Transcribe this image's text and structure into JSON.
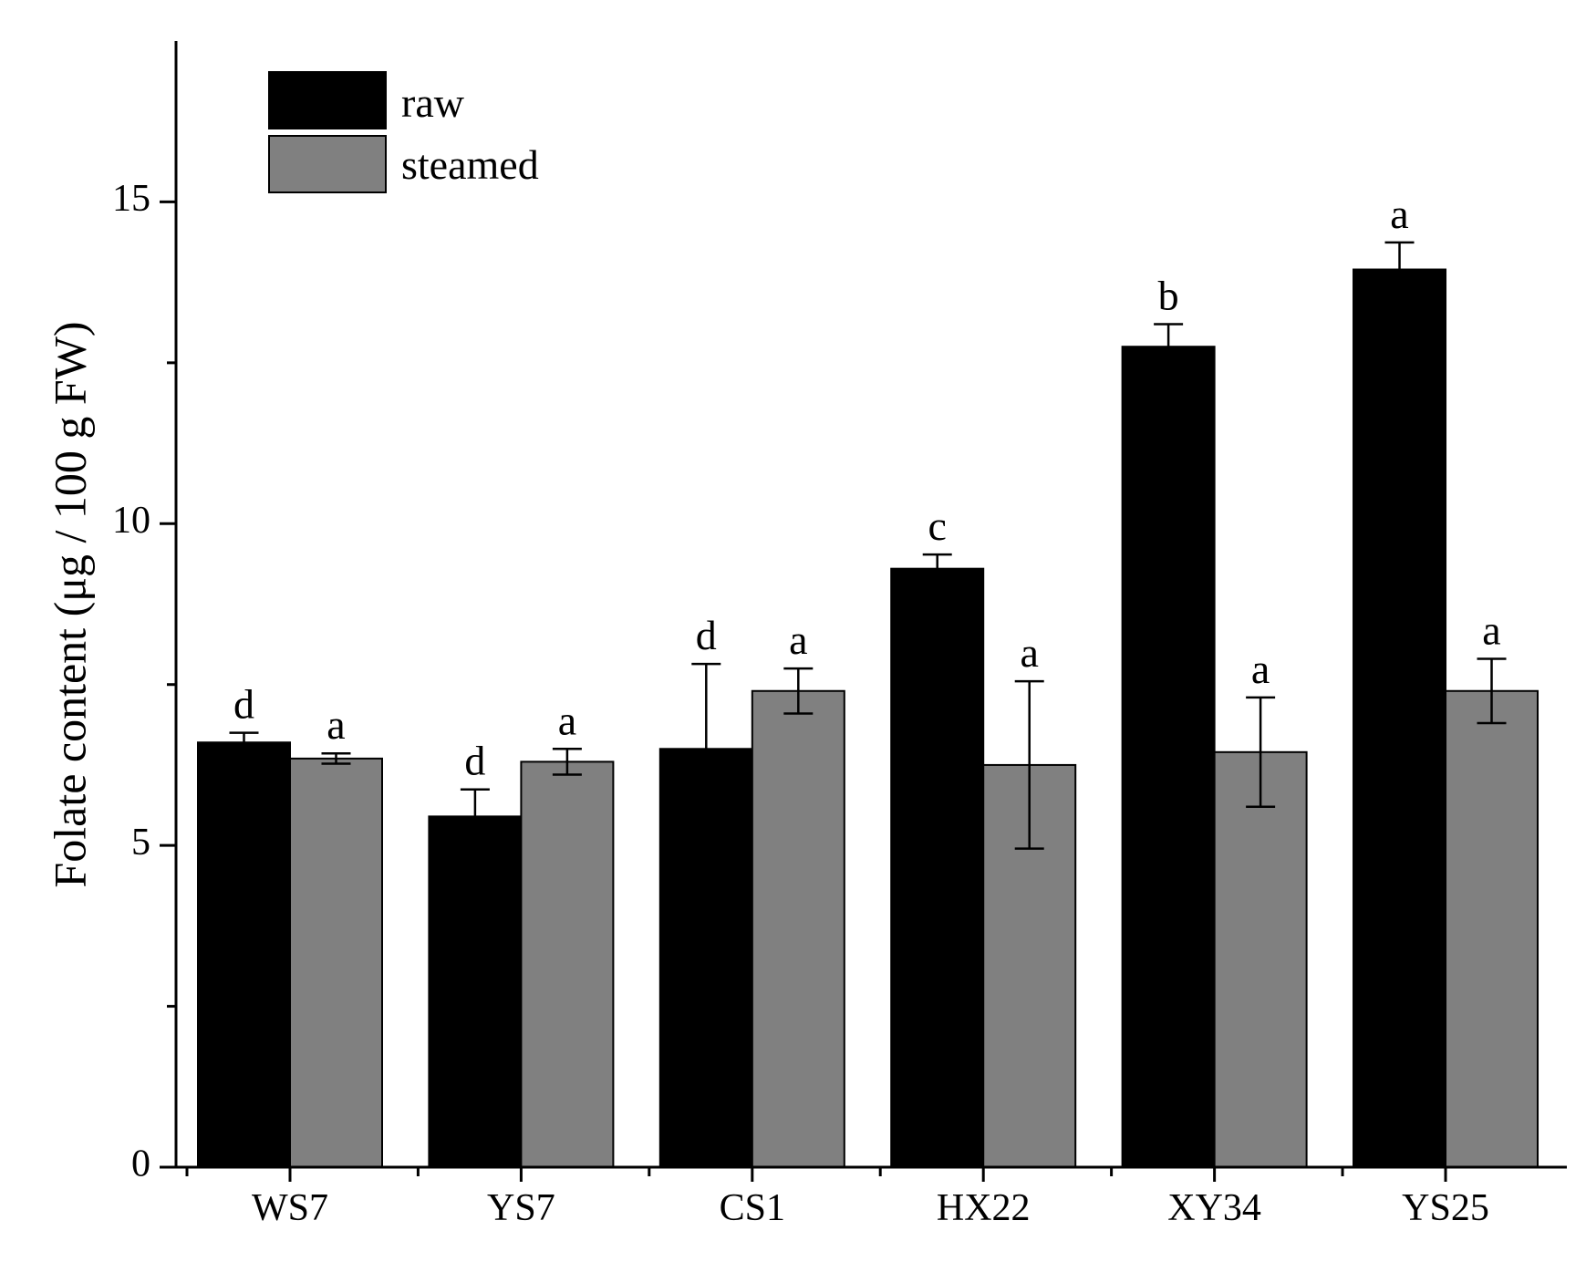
{
  "chart_data": {
    "type": "bar",
    "ylabel": "Folate content (μg / 100 g FW)",
    "xlabel": "",
    "ylim": [
      0,
      17.5
    ],
    "y_ticks": [
      0,
      5,
      10,
      15
    ],
    "categories": [
      "WS7",
      "YS7",
      "CS1",
      "HX22",
      "XY34",
      "YS25"
    ],
    "series": [
      {
        "name": "raw",
        "color": "#000000",
        "values": [
          6.6,
          5.45,
          6.5,
          9.3,
          12.75,
          13.95
        ],
        "errors": [
          0.15,
          0.42,
          1.32,
          0.22,
          0.35,
          0.42
        ],
        "letters": [
          "d",
          "d",
          "d",
          "c",
          "b",
          "a"
        ]
      },
      {
        "name": "steamed",
        "color": "#808080",
        "values": [
          6.35,
          6.3,
          7.4,
          6.25,
          6.45,
          7.4
        ],
        "errors": [
          0.08,
          0.2,
          0.35,
          1.3,
          0.85,
          0.5
        ],
        "letters": [
          "a",
          "a",
          "a",
          "a",
          "a",
          "a"
        ]
      }
    ],
    "legend": {
      "position": "top-left"
    },
    "grid": false
  }
}
